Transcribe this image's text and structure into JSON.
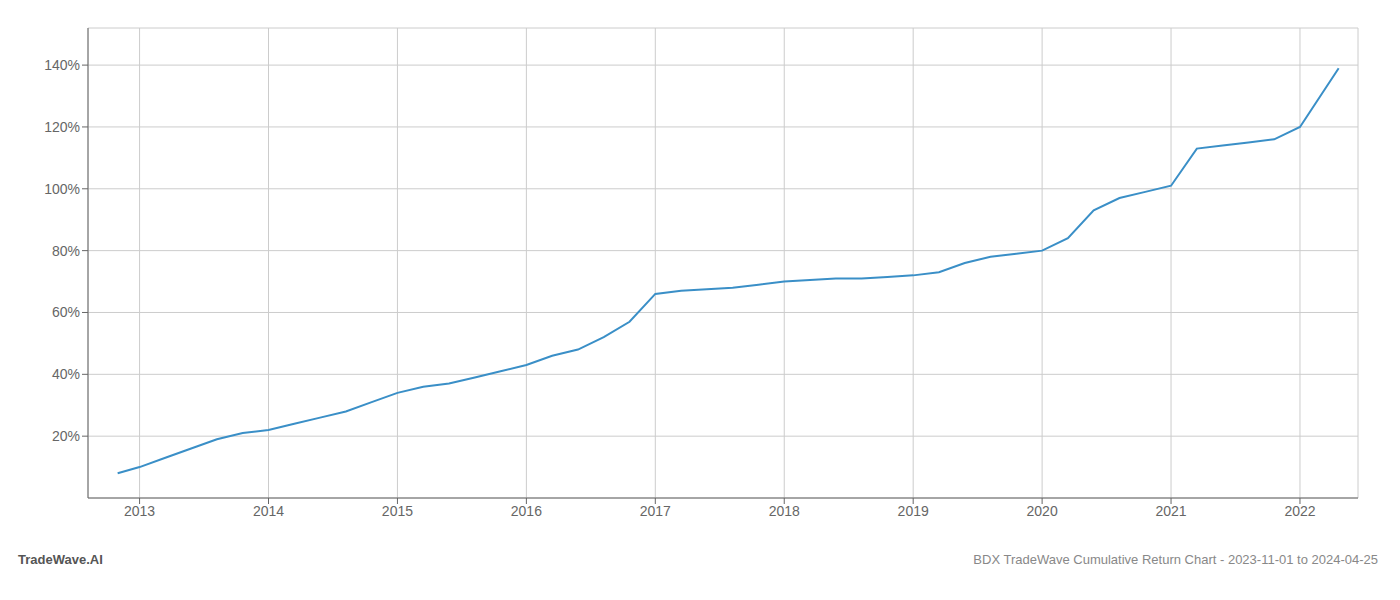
{
  "chart_data": {
    "type": "line",
    "annotations": [
      "TradeWave.AI",
      "BDX TradeWave Cumulative Return Chart - 2023-11-01 to 2024-04-25"
    ],
    "x": [
      2012.83,
      2013.0,
      2013.2,
      2013.4,
      2013.6,
      2013.8,
      2014.0,
      2014.2,
      2014.4,
      2014.6,
      2014.8,
      2015.0,
      2015.2,
      2015.4,
      2015.6,
      2015.8,
      2016.0,
      2016.2,
      2016.4,
      2016.6,
      2016.8,
      2017.0,
      2017.2,
      2017.4,
      2017.6,
      2017.8,
      2018.0,
      2018.2,
      2018.4,
      2018.6,
      2018.8,
      2019.0,
      2019.2,
      2019.4,
      2019.6,
      2019.8,
      2020.0,
      2020.2,
      2020.4,
      2020.6,
      2020.8,
      2021.0,
      2021.2,
      2021.4,
      2021.6,
      2021.8,
      2022.0,
      2022.3
    ],
    "values": [
      8,
      10,
      13,
      16,
      19,
      21,
      22,
      24,
      26,
      28,
      31,
      34,
      36,
      37,
      39,
      41,
      43,
      46,
      48,
      52,
      57,
      66,
      67,
      67.5,
      68,
      69,
      70,
      70.5,
      71,
      71,
      71.5,
      72,
      73,
      76,
      78,
      79,
      80,
      84,
      93,
      97,
      99,
      101,
      113,
      114,
      115,
      116,
      120,
      139
    ],
    "color": "#3a8fc7",
    "xlim": [
      2012.6,
      2022.45
    ],
    "xticks": [
      2013,
      2014,
      2015,
      2016,
      2017,
      2018,
      2019,
      2020,
      2021,
      2022
    ],
    "ylim": [
      0,
      152
    ],
    "yticks": [
      {
        "value": 20,
        "label": "20%"
      },
      {
        "value": 40,
        "label": "40%"
      },
      {
        "value": 60,
        "label": "60%"
      },
      {
        "value": 80,
        "label": "80%"
      },
      {
        "value": 100,
        "label": "100%"
      },
      {
        "value": 120,
        "label": "120%"
      },
      {
        "value": 140,
        "label": "140%"
      }
    ],
    "grid": true
  }
}
